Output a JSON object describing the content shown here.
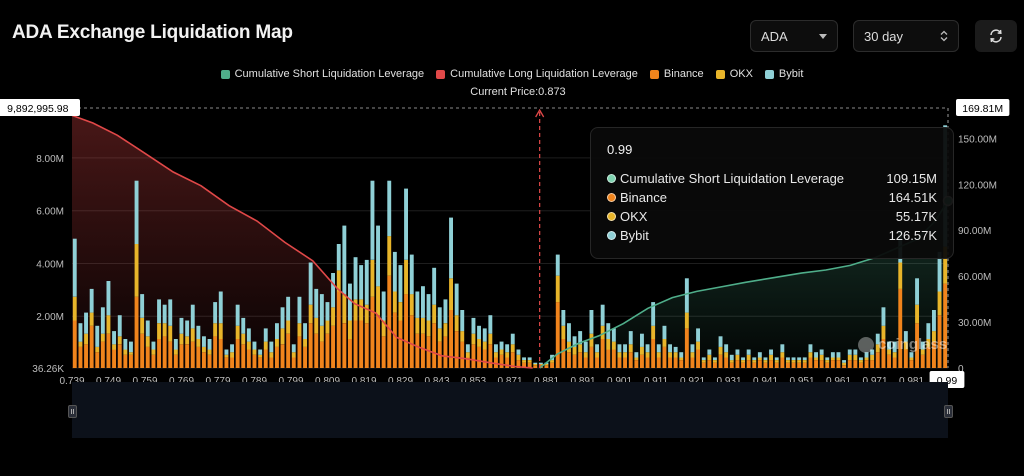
{
  "header": {
    "title": "ADA Exchange Liquidation Map"
  },
  "controls": {
    "coin": "ADA",
    "range": "30 day"
  },
  "watermark": "coinglass",
  "colors": {
    "short_cum": "#4fae8a",
    "long_cum": "#e04848",
    "binance": "#f0841c",
    "okx": "#e8b52a",
    "bybit": "#8fd0d6",
    "background": "#000000"
  },
  "tooltip": {
    "price": "0.99",
    "rows": [
      {
        "name": "Cumulative Short Liquidation Leverage",
        "value": "109.15M",
        "color": "#7fd3b0"
      },
      {
        "name": "Binance",
        "value": "164.51K",
        "color": "#f0841c"
      },
      {
        "name": "OKX",
        "value": "55.17K",
        "color": "#e8b52a"
      },
      {
        "name": "Bybit",
        "value": "126.57K",
        "color": "#8fd0d6"
      }
    ]
  },
  "chart_data": {
    "type": "bar",
    "title": "ADA Exchange Liquidation Map",
    "current_price_label": "Current Price:0.873",
    "current_price": 0.873,
    "legend": [
      "Cumulative Short Liquidation Leverage",
      "Cumulative Long Liquidation Leverage",
      "Binance",
      "OKX",
      "Bybit"
    ],
    "x_ticks": [
      "0.739",
      "0.749",
      "0.759",
      "0.769",
      "0.779",
      "0.789",
      "0.799",
      "0.809",
      "0.819",
      "0.829",
      "0.843",
      "0.853",
      "0.871",
      "0.881",
      "0.891",
      "0.901",
      "0.911",
      "0.921",
      "0.931",
      "0.941",
      "0.951",
      "0.961",
      "0.971",
      "0.981",
      "0.99"
    ],
    "x_range": [
      0.739,
      0.99
    ],
    "y_left_ticks": [
      "36.26K",
      "2.00M",
      "4.00M",
      "6.00M",
      "8.00M"
    ],
    "y_left_max_label": "9,892,995.98",
    "y_left_range": [
      36260,
      9892995.98
    ],
    "y_right_ticks": [
      "0",
      "30.00M",
      "60.00M",
      "90.00M",
      "120.00M",
      "150.00M"
    ],
    "y_right_max_label": "169.81M",
    "y_right_range": [
      0,
      169810000
    ],
    "grid": true,
    "legend_position": "top-center",
    "bars_binance": [
      1800000,
      800000,
      900000,
      1600000,
      600000,
      1000000,
      1300000,
      700000,
      900000,
      500000,
      500000,
      2700000,
      1300000,
      800000,
      500000,
      1100000,
      1200000,
      1000000,
      500000,
      900000,
      900000,
      1000000,
      800000,
      600000,
      500000,
      1200000,
      1100000,
      400000,
      400000,
      1100000,
      900000,
      700000,
      500000,
      400000,
      700000,
      400000,
      800000,
      900000,
      1300000,
      400000,
      1200000,
      800000,
      1700000,
      1300000,
      1000000,
      1300000,
      1600000,
      2900000,
      1700000,
      1100000,
      1800000,
      1800000,
      1700000,
      2700000,
      2000000,
      1200000,
      3500000,
      2100000,
      1800000,
      2800000,
      2000000,
      1300000,
      1300000,
      1200000,
      1700000,
      1000000,
      1200000,
      2200000,
      1400000,
      1000000,
      400000,
      900000,
      800000,
      700000,
      900000,
      400000,
      500000,
      400000,
      600000,
      300000,
      200000,
      200000,
      100000,
      100000,
      100000,
      200000,
      2500000,
      1100000,
      600000,
      500000,
      600000,
      400000,
      800000,
      400000,
      1100000,
      700000,
      700000,
      400000,
      400000,
      600000,
      300000,
      500000,
      400000,
      1100000,
      400000,
      800000,
      400000,
      400000,
      300000,
      1500000,
      400000,
      700000,
      200000,
      300000,
      200000,
      500000,
      400000,
      200000,
      300000,
      200000,
      300000,
      200000,
      300000,
      200000,
      300000,
      200000,
      400000,
      200000,
      200000,
      200000,
      200000,
      400000,
      300000,
      300000,
      200000,
      300000,
      300000,
      100000,
      300000,
      300000,
      200000,
      300000,
      300000,
      600000,
      1100000,
      500000,
      400000,
      3000000,
      700000,
      300000,
      1700000,
      500000,
      800000,
      1000000,
      2000000,
      3200000
    ],
    "bars_okx": [
      900000,
      200000,
      400000,
      500000,
      200000,
      300000,
      700000,
      200000,
      300000,
      200000,
      100000,
      2000000,
      600000,
      400000,
      200000,
      600000,
      500000,
      600000,
      200000,
      400000,
      300000,
      500000,
      300000,
      200000,
      200000,
      500000,
      600000,
      100000,
      200000,
      500000,
      400000,
      300000,
      200000,
      100000,
      300000,
      200000,
      300000,
      600000,
      500000,
      200000,
      500000,
      300000,
      700000,
      600000,
      600000,
      500000,
      700000,
      800000,
      1100000,
      700000,
      800000,
      800000,
      700000,
      1400000,
      1100000,
      600000,
      1500000,
      800000,
      700000,
      1300000,
      800000,
      600000,
      600000,
      600000,
      700000,
      500000,
      500000,
      1200000,
      600000,
      400000,
      200000,
      400000,
      300000,
      300000,
      400000,
      200000,
      200000,
      200000,
      300000,
      200000,
      100000,
      100000,
      50000,
      50000,
      50000,
      100000,
      1000000,
      500000,
      400000,
      300000,
      300000,
      200000,
      500000,
      200000,
      500000,
      400000,
      300000,
      200000,
      200000,
      300000,
      100000,
      300000,
      200000,
      500000,
      200000,
      300000,
      200000,
      200000,
      100000,
      600000,
      200000,
      300000,
      100000,
      200000,
      100000,
      300000,
      200000,
      100000,
      200000,
      100000,
      200000,
      100000,
      100000,
      100000,
      200000,
      100000,
      200000,
      100000,
      100000,
      100000,
      100000,
      200000,
      100000,
      200000,
      100000,
      100000,
      100000,
      100000,
      200000,
      200000,
      100000,
      100000,
      200000,
      300000,
      500000,
      200000,
      200000,
      1000000,
      300000,
      100000,
      700000,
      200000,
      300000,
      400000,
      900000,
      1400000
    ],
    "bars_bybit": [
      2200000,
      700000,
      800000,
      900000,
      800000,
      1000000,
      1300000,
      500000,
      800000,
      400000,
      400000,
      2400000,
      900000,
      600000,
      300000,
      900000,
      700000,
      1000000,
      400000,
      600000,
      600000,
      900000,
      500000,
      400000,
      400000,
      800000,
      1200000,
      200000,
      300000,
      800000,
      600000,
      500000,
      300000,
      200000,
      500000,
      400000,
      600000,
      800000,
      900000,
      300000,
      1000000,
      600000,
      1600000,
      1100000,
      1200000,
      700000,
      1300000,
      1000000,
      2600000,
      1400000,
      1600000,
      1300000,
      1700000,
      3000000,
      2300000,
      1100000,
      2100000,
      1500000,
      1400000,
      2700000,
      1500000,
      1000000,
      1200000,
      1000000,
      1400000,
      800000,
      900000,
      2300000,
      1200000,
      800000,
      300000,
      600000,
      500000,
      500000,
      700000,
      300000,
      300000,
      300000,
      400000,
      200000,
      100000,
      100000,
      50000,
      50000,
      50000,
      200000,
      800000,
      600000,
      700000,
      400000,
      500000,
      400000,
      900000,
      300000,
      800000,
      600000,
      500000,
      300000,
      300000,
      500000,
      200000,
      500000,
      300000,
      900000,
      300000,
      500000,
      300000,
      200000,
      200000,
      1300000,
      300000,
      500000,
      100000,
      200000,
      100000,
      400000,
      300000,
      200000,
      200000,
      100000,
      200000,
      100000,
      200000,
      100000,
      200000,
      100000,
      300000,
      100000,
      100000,
      100000,
      100000,
      300000,
      200000,
      200000,
      100000,
      200000,
      200000,
      100000,
      200000,
      200000,
      100000,
      200000,
      200000,
      400000,
      700000,
      300000,
      400000,
      1200000,
      400000,
      200000,
      1000000,
      300000,
      600000,
      800000,
      1500000,
      4600000
    ],
    "long_cumulative": [
      [
        0.739,
        165000000
      ],
      [
        0.745,
        160000000
      ],
      [
        0.752,
        152000000
      ],
      [
        0.76,
        140000000
      ],
      [
        0.768,
        128000000
      ],
      [
        0.776,
        119000000
      ],
      [
        0.784,
        106000000
      ],
      [
        0.792,
        96000000
      ],
      [
        0.8,
        82000000
      ],
      [
        0.808,
        70000000
      ],
      [
        0.815,
        52000000
      ],
      [
        0.82,
        42000000
      ],
      [
        0.826,
        36000000
      ],
      [
        0.832,
        20000000
      ],
      [
        0.838,
        14000000
      ],
      [
        0.845,
        8000000
      ],
      [
        0.852,
        6000000
      ],
      [
        0.86,
        3000000
      ],
      [
        0.866,
        1000000
      ],
      [
        0.871,
        0
      ]
    ],
    "short_cumulative": [
      [
        0.873,
        0
      ],
      [
        0.878,
        9000000
      ],
      [
        0.884,
        16000000
      ],
      [
        0.89,
        21000000
      ],
      [
        0.897,
        29000000
      ],
      [
        0.904,
        39000000
      ],
      [
        0.911,
        46000000
      ],
      [
        0.918,
        50000000
      ],
      [
        0.925,
        53000000
      ],
      [
        0.932,
        56000000
      ],
      [
        0.94,
        59000000
      ],
      [
        0.948,
        62000000
      ],
      [
        0.955,
        64000000
      ],
      [
        0.962,
        67000000
      ],
      [
        0.969,
        72000000
      ],
      [
        0.975,
        78000000
      ],
      [
        0.981,
        84000000
      ],
      [
        0.986,
        95000000
      ],
      [
        0.99,
        109150000
      ]
    ]
  }
}
